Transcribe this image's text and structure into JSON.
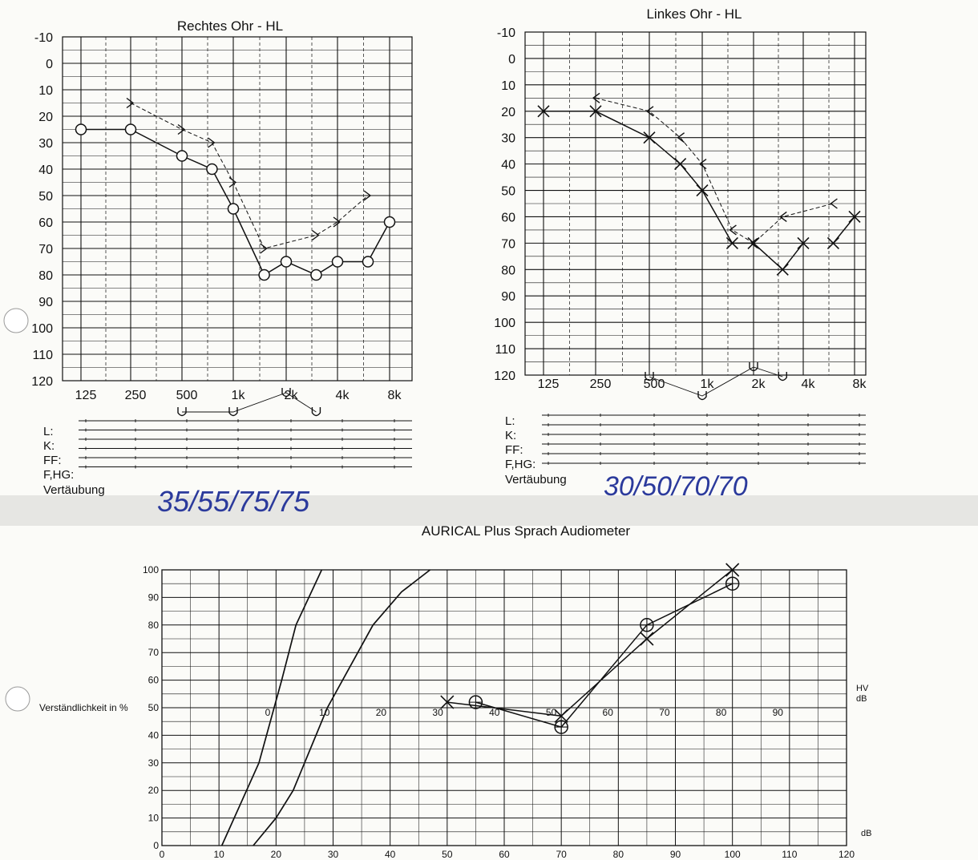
{
  "colors": {
    "paper": "#fbfbf8",
    "ink": "#111111",
    "grid": "#1a1a1a",
    "handwriting": "#2b3a9c",
    "fold": "#e6e6e3"
  },
  "chart_data": [
    {
      "type": "line",
      "title": "Rechtes Ohr - HL",
      "x_tick_labels": [
        "125",
        "250",
        "500",
        "1k",
        "2k",
        "4k",
        "8k"
      ],
      "y_tick_labels": [
        "-10",
        "0",
        "10",
        "20",
        "30",
        "40",
        "50",
        "60",
        "70",
        "80",
        "90",
        "100",
        "110",
        "120"
      ],
      "y_reversed": true,
      "ylim": [
        -10,
        120
      ],
      "grid": true,
      "series": [
        {
          "marker": "circle",
          "line": "solid",
          "points": [
            {
              "x": 125,
              "y": 25,
              "connected": false
            },
            {
              "x": 250,
              "y": 25
            },
            {
              "x": 500,
              "y": 35
            },
            {
              "x": 750,
              "y": 40
            },
            {
              "x": 1000,
              "y": 55
            },
            {
              "x": 1500,
              "y": 80
            },
            {
              "x": 2000,
              "y": 75
            },
            {
              "x": 3000,
              "y": 80
            },
            {
              "x": 4000,
              "y": 75
            },
            {
              "x": 6000,
              "y": 75
            },
            {
              "x": 8000,
              "y": 60
            }
          ]
        },
        {
          "marker": "bracket-right",
          "line": "dashed",
          "points": [
            {
              "x": 250,
              "y": 15
            },
            {
              "x": 500,
              "y": 25
            },
            {
              "x": 750,
              "y": 30
            },
            {
              "x": 1000,
              "y": 45
            },
            {
              "x": 1500,
              "y": 70
            },
            {
              "x": 3000,
              "y": 65
            },
            {
              "x": 4000,
              "y": 60
            },
            {
              "x": 6000,
              "y": 50
            }
          ]
        }
      ],
      "below_axis_symbols": [
        {
          "marker": "U",
          "x": 500
        },
        {
          "marker": "U",
          "x": 1000
        },
        {
          "marker": "U",
          "x": 2000
        },
        {
          "marker": "U",
          "x": 3000
        }
      ],
      "rows": [
        "L:",
        "K:",
        "FF:",
        "F,HG:"
      ],
      "masking_label": "Vertäubung",
      "handwritten_note": "35/55/75/75"
    },
    {
      "type": "line",
      "title": "Linkes Ohr - HL",
      "x_tick_labels": [
        "125",
        "250",
        "500",
        "1k",
        "2k",
        "4k",
        "8k"
      ],
      "y_tick_labels": [
        "-10",
        "0",
        "10",
        "20",
        "30",
        "40",
        "50",
        "60",
        "70",
        "80",
        "90",
        "100",
        "110",
        "120"
      ],
      "y_reversed": true,
      "ylim": [
        -10,
        120
      ],
      "grid": true,
      "series": [
        {
          "marker": "cross",
          "line": "solid",
          "points": [
            {
              "x": 125,
              "y": 20,
              "connected": false
            },
            {
              "x": 250,
              "y": 20
            },
            {
              "x": 500,
              "y": 30
            },
            {
              "x": 750,
              "y": 40
            },
            {
              "x": 1000,
              "y": 50
            },
            {
              "x": 1500,
              "y": 70
            },
            {
              "x": 2000,
              "y": 70
            },
            {
              "x": 3000,
              "y": 80
            },
            {
              "x": 4000,
              "y": 70
            },
            {
              "x": 6000,
              "y": 70,
              "connected": false
            },
            {
              "x": 8000,
              "y": 60
            }
          ]
        },
        {
          "marker": "bracket-left",
          "line": "dashed",
          "points": [
            {
              "x": 250,
              "y": 15
            },
            {
              "x": 500,
              "y": 20
            },
            {
              "x": 750,
              "y": 30
            },
            {
              "x": 1000,
              "y": 40
            },
            {
              "x": 1500,
              "y": 65
            },
            {
              "x": 2000,
              "y": 70
            },
            {
              "x": 3000,
              "y": 60
            },
            {
              "x": 6000,
              "y": 55
            }
          ]
        }
      ],
      "below_axis_symbols": [
        {
          "marker": "U",
          "x": 500
        },
        {
          "marker": "U",
          "x": 1000
        },
        {
          "marker": "U",
          "x": 2000
        },
        {
          "marker": "U",
          "x": 3000
        }
      ],
      "rows": [
        "L:",
        "K:",
        "FF:",
        "F,HG:"
      ],
      "masking_label": "Vertäubung",
      "handwritten_note": "30/50/70/70"
    },
    {
      "type": "line",
      "title": "AURICAL Plus Sprach Audiometer",
      "ylabel": "Verständlichkeit in %",
      "xlabel": "dB",
      "hv_label": "HV\ndB",
      "ylim": [
        0,
        100
      ],
      "xlim": [
        0,
        120
      ],
      "x_tick_labels": [
        "0",
        "10",
        "20",
        "30",
        "40",
        "50",
        "60",
        "70",
        "80",
        "90",
        "100",
        "110",
        "120"
      ],
      "y_tick_labels": [
        "0",
        "10",
        "20",
        "30",
        "40",
        "50",
        "60",
        "70",
        "80",
        "90",
        "100"
      ],
      "hv_tick_labels": [
        "0",
        "10",
        "20",
        "30",
        "40",
        "50",
        "60",
        "70",
        "80",
        "90"
      ],
      "grid": true,
      "reference_curves": [
        {
          "name": "",
          "points": [
            {
              "x": 10.5,
              "y": 0
            },
            {
              "x": 17,
              "y": 30
            },
            {
              "x": 21,
              "y": 60
            },
            {
              "x": 23.5,
              "y": 80
            },
            {
              "x": 28,
              "y": 100
            }
          ]
        },
        {
          "name": "",
          "points": [
            {
              "x": 16,
              "y": 0
            },
            {
              "x": 20,
              "y": 10
            },
            {
              "x": 23,
              "y": 20
            },
            {
              "x": 29,
              "y": 50
            },
            {
              "x": 37,
              "y": 80
            },
            {
              "x": 42,
              "y": 92
            },
            {
              "x": 47,
              "y": 100
            }
          ]
        }
      ],
      "series": [
        {
          "marker": "cross",
          "points": [
            {
              "x": 50,
              "y": 52,
              "connected": false
            },
            {
              "x": 70,
              "y": 47
            },
            {
              "x": 85,
              "y": 75
            },
            {
              "x": 100,
              "y": 100
            }
          ]
        },
        {
          "marker": "circle-cross",
          "points": [
            {
              "x": 55,
              "y": 52,
              "connected": false
            },
            {
              "x": 70,
              "y": 43
            },
            {
              "x": 85,
              "y": 80
            },
            {
              "x": 100,
              "y": 95
            }
          ]
        }
      ]
    }
  ]
}
